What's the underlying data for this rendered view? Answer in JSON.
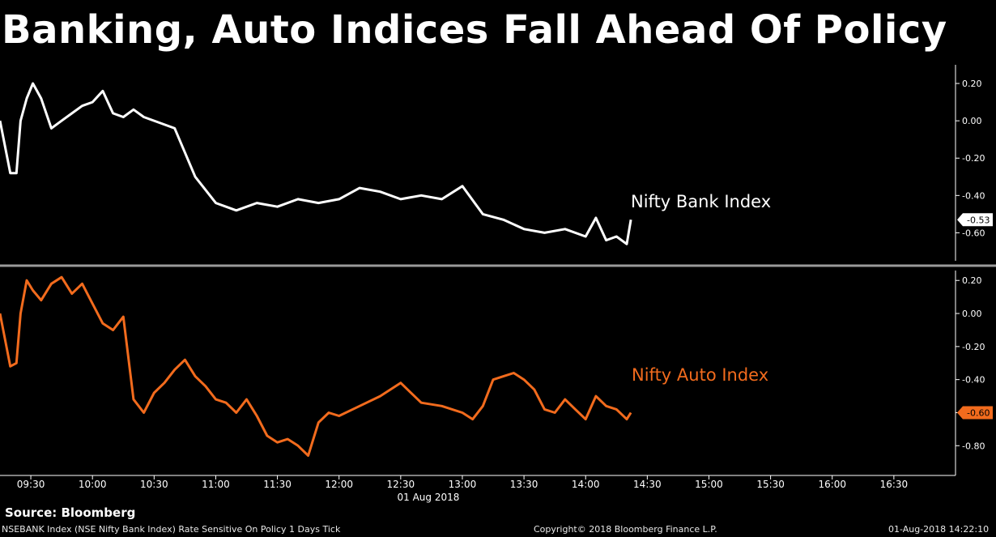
{
  "title": "Banking, Auto Indices Fall Ahead Of Policy",
  "source": "Source: Bloomberg",
  "footer": {
    "left": "NSEBANK Index (NSE Nifty Bank Index) Rate Sensitive On Policy 1 Days  Tick",
    "center": "Copyright© 2018 Bloomberg Finance L.P.",
    "right": "01-Aug-2018 14:22:10"
  },
  "colors": {
    "background": "#000000",
    "bank": "#ffffff",
    "auto": "#f26b1d",
    "divider": "#9a9a9a",
    "axis": "#ffffff"
  },
  "chart_data": [
    {
      "type": "line",
      "series": [
        {
          "name": "Nifty Bank Index",
          "x": [
            "09:15",
            "09:20",
            "09:23",
            "09:25",
            "09:28",
            "09:31",
            "09:35",
            "09:40",
            "09:45",
            "09:50",
            "09:55",
            "10:00",
            "10:05",
            "10:10",
            "10:15",
            "10:20",
            "10:25",
            "10:30",
            "10:40",
            "10:50",
            "11:00",
            "11:10",
            "11:20",
            "11:30",
            "11:40",
            "11:50",
            "12:00",
            "12:10",
            "12:20",
            "12:30",
            "12:40",
            "12:50",
            "13:00",
            "13:10",
            "13:20",
            "13:30",
            "13:40",
            "13:50",
            "14:00",
            "14:05",
            "14:10",
            "14:15",
            "14:20",
            "14:22"
          ],
          "values": [
            0.0,
            -0.28,
            -0.28,
            0.0,
            0.12,
            0.2,
            0.12,
            -0.04,
            0.0,
            0.04,
            0.08,
            0.1,
            0.16,
            0.04,
            0.02,
            0.06,
            0.02,
            0.0,
            -0.04,
            -0.3,
            -0.44,
            -0.48,
            -0.44,
            -0.46,
            -0.42,
            -0.44,
            -0.42,
            -0.36,
            -0.38,
            -0.42,
            -0.4,
            -0.42,
            -0.35,
            -0.5,
            -0.53,
            -0.58,
            -0.6,
            -0.58,
            -0.62,
            -0.52,
            -0.64,
            -0.62,
            -0.66,
            -0.53
          ],
          "last_value_label": "-0.53"
        }
      ],
      "yticks": [
        "0.20",
        "0.00",
        "-0.20",
        "-0.40",
        "-0.60"
      ],
      "ylim": [
        -0.75,
        0.3
      ]
    },
    {
      "type": "line",
      "series": [
        {
          "name": "Nifty Auto Index",
          "x": [
            "09:15",
            "09:20",
            "09:23",
            "09:25",
            "09:28",
            "09:31",
            "09:35",
            "09:40",
            "09:45",
            "09:50",
            "09:55",
            "10:00",
            "10:05",
            "10:10",
            "10:15",
            "10:20",
            "10:25",
            "10:30",
            "10:35",
            "10:40",
            "10:45",
            "10:50",
            "10:55",
            "11:00",
            "11:05",
            "11:10",
            "11:15",
            "11:20",
            "11:25",
            "11:30",
            "11:35",
            "11:40",
            "11:45",
            "11:50",
            "11:55",
            "12:00",
            "12:10",
            "12:20",
            "12:30",
            "12:40",
            "12:50",
            "13:00",
            "13:05",
            "13:10",
            "13:15",
            "13:20",
            "13:25",
            "13:30",
            "13:35",
            "13:40",
            "13:45",
            "13:50",
            "13:55",
            "14:00",
            "14:05",
            "14:10",
            "14:15",
            "14:20",
            "14:22"
          ],
          "values": [
            0.0,
            -0.32,
            -0.3,
            0.0,
            0.2,
            0.14,
            0.08,
            0.18,
            0.22,
            0.12,
            0.18,
            0.06,
            -0.06,
            -0.1,
            -0.02,
            -0.52,
            -0.6,
            -0.48,
            -0.42,
            -0.34,
            -0.28,
            -0.38,
            -0.44,
            -0.52,
            -0.54,
            -0.6,
            -0.52,
            -0.62,
            -0.74,
            -0.78,
            -0.76,
            -0.8,
            -0.86,
            -0.66,
            -0.6,
            -0.62,
            -0.56,
            -0.5,
            -0.42,
            -0.54,
            -0.56,
            -0.6,
            -0.64,
            -0.56,
            -0.4,
            -0.38,
            -0.36,
            -0.4,
            -0.46,
            -0.58,
            -0.6,
            -0.52,
            -0.58,
            -0.64,
            -0.5,
            -0.56,
            -0.58,
            -0.64,
            -0.6
          ],
          "last_value_label": "-0.60"
        }
      ],
      "yticks": [
        "0.20",
        "0.00",
        "-0.20",
        "-0.40",
        "-0.60",
        "-0.80"
      ],
      "ylim": [
        -0.98,
        0.26
      ]
    }
  ],
  "x_axis": {
    "ticks": [
      "09:30",
      "10:00",
      "10:30",
      "11:00",
      "11:30",
      "12:00",
      "12:30",
      "13:00",
      "13:30",
      "14:00",
      "14:30",
      "15:00",
      "15:30",
      "16:00",
      "16:30"
    ],
    "date_label": "01 Aug 2018",
    "range": [
      "09:15",
      "17:00"
    ]
  }
}
